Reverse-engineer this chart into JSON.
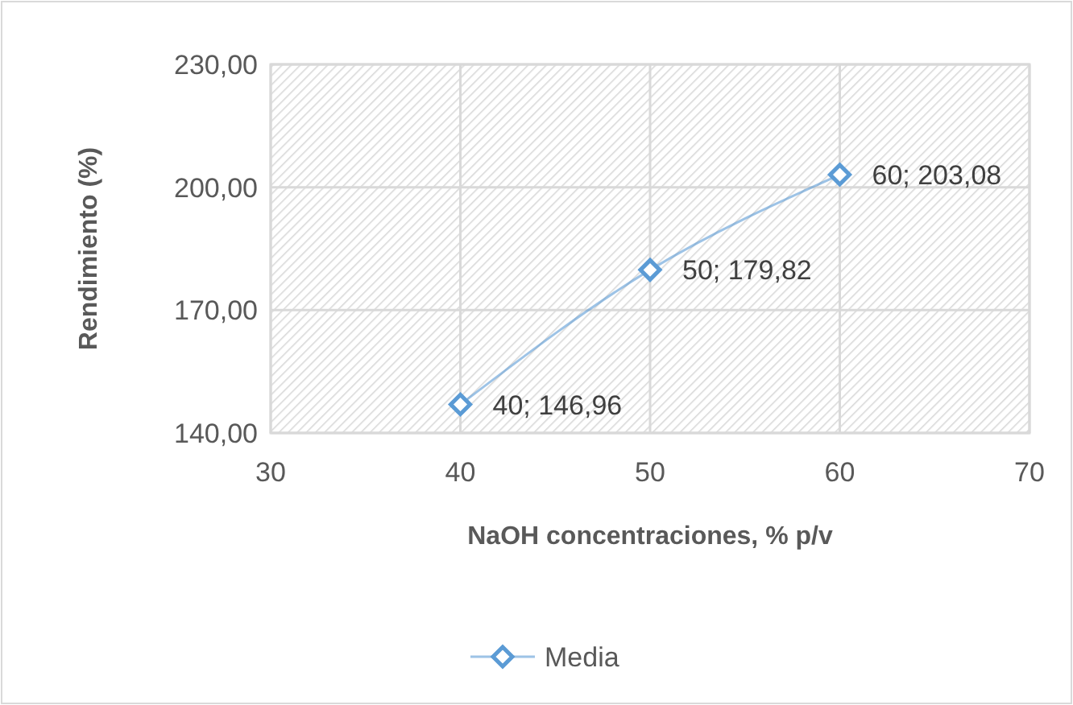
{
  "chart_data": {
    "type": "line",
    "xlabel": "NaOH concentraciones, % p/v",
    "ylabel": "Rendimiento (%)",
    "x": [
      40,
      50,
      60
    ],
    "series": [
      {
        "name": "Media",
        "color": "#5b9bd5",
        "values": [
          146.96,
          179.82,
          203.08
        ],
        "value_labels": [
          "40; 146,96",
          "50; 179,82",
          "60; 203,08"
        ]
      }
    ],
    "xlim": [
      30,
      70
    ],
    "xticks": [
      30,
      40,
      50,
      60,
      70
    ],
    "ylim": [
      140,
      230
    ],
    "yticks": [
      {
        "value": 140,
        "label": "140,00"
      },
      {
        "value": 170,
        "label": "170,00"
      },
      {
        "value": 200,
        "label": "200,00"
      },
      {
        "value": 230,
        "label": "230,00"
      }
    ],
    "grid": true,
    "legend": "bottom",
    "marker": "diamond",
    "line_style": "solid"
  }
}
